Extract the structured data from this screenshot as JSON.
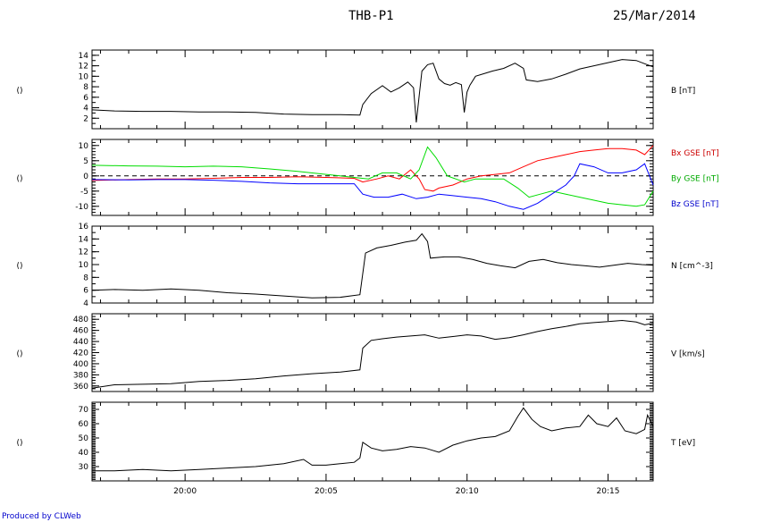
{
  "header": {
    "title": "THB-P1",
    "date": "25/Mar/2014"
  },
  "footer": {
    "credit": "Produced by CLWeb"
  },
  "chart_data": {
    "type": "line",
    "x_tick_labels": [
      "20:00",
      "20:05",
      "20:10",
      "20:15"
    ],
    "x_tick_minutes": [
      0,
      5,
      10,
      15
    ],
    "xlim_minutes": [
      -3.3,
      16.6
    ],
    "panels": [
      {
        "id": "B",
        "left_label": "()",
        "ylim": [
          0,
          15
        ],
        "yticks": [
          2,
          4,
          6,
          8,
          10,
          12,
          14
        ],
        "zero_line": false,
        "labels": [
          {
            "text": "B [nT]",
            "color": "#000000"
          }
        ],
        "series": [
          {
            "color": "#000000",
            "x": [
              -3.3,
              -2.5,
              -1.5,
              -0.5,
              0.5,
              1.5,
              2.5,
              3.5,
              4.5,
              5.5,
              6.2,
              6.3,
              6.6,
              7.0,
              7.3,
              7.6,
              7.9,
              8.1,
              8.2,
              8.3,
              8.4,
              8.6,
              8.8,
              9.0,
              9.2,
              9.4,
              9.6,
              9.8,
              9.9,
              10.0,
              10.1,
              10.3,
              10.6,
              10.9,
              11.3,
              11.7,
              12.0,
              12.1,
              12.5,
              13.0,
              13.5,
              14.0,
              14.5,
              15.0,
              15.5,
              16.0,
              16.3,
              16.6
            ],
            "y": [
              3.6,
              3.4,
              3.3,
              3.3,
              3.2,
              3.2,
              3.1,
              2.8,
              2.7,
              2.7,
              2.6,
              4.6,
              6.7,
              8.2,
              7.0,
              7.8,
              8.9,
              7.8,
              1.2,
              6.2,
              11.0,
              12.2,
              12.5,
              9.5,
              8.6,
              8.3,
              8.8,
              8.4,
              3.1,
              7.0,
              8.3,
              10.0,
              10.5,
              11.0,
              11.5,
              12.5,
              11.5,
              9.3,
              9.0,
              9.5,
              10.4,
              11.4,
              12.0,
              12.6,
              13.2,
              13.0,
              12.4,
              11.8
            ]
          }
        ]
      },
      {
        "id": "Bxyz",
        "left_label": "()",
        "ylim": [
          -13,
          12
        ],
        "yticks": [
          -10,
          -5,
          0,
          5,
          10
        ],
        "zero_line": true,
        "labels": [
          {
            "text": "Bx GSE [nT]",
            "color": "#cc0000"
          },
          {
            "text": "By GSE [nT]",
            "color": "#00aa00"
          },
          {
            "text": "Bz GSE [nT]",
            "color": "#0000cc"
          }
        ],
        "series": [
          {
            "name": "Bx GSE [nT]",
            "color": "#ff0000",
            "x": [
              -3.3,
              -2,
              -1,
              0,
              1,
              2,
              3,
              4,
              5,
              6,
              6.3,
              6.8,
              7.2,
              7.6,
              8.0,
              8.3,
              8.5,
              8.8,
              9.0,
              9.5,
              10,
              10.5,
              11,
              11.5,
              12.0,
              12.5,
              13,
              13.5,
              14,
              14.5,
              15,
              15.5,
              16,
              16.3,
              16.6
            ],
            "y": [
              -1.5,
              -1.2,
              -1.0,
              -1.0,
              -0.8,
              -0.5,
              -0.5,
              -0.3,
              -0.5,
              -0.8,
              -2,
              -1,
              0,
              -1,
              2,
              -1,
              -4.5,
              -5,
              -4,
              -3,
              -1,
              0,
              0.5,
              1,
              3,
              5,
              6,
              7,
              8,
              8.5,
              9,
              9,
              8.5,
              7,
              10
            ]
          },
          {
            "name": "By GSE [nT]",
            "color": "#00dd00",
            "x": [
              -3.3,
              -2,
              -1,
              0,
              1,
              2,
              3,
              4,
              5,
              5.5,
              6,
              6.5,
              7,
              7.5,
              8,
              8.3,
              8.6,
              8.9,
              9.3,
              9.6,
              9.9,
              10.3,
              10.8,
              11.3,
              11.8,
              12.2,
              12.6,
              13,
              13.5,
              14,
              14.5,
              15,
              15.5,
              16,
              16.3,
              16.6
            ],
            "y": [
              3.5,
              3.3,
              3.2,
              3.0,
              3.2,
              3.0,
              2.3,
              1.5,
              0.5,
              0.0,
              -0.5,
              -1,
              1,
              1,
              -1,
              2,
              9.5,
              6,
              0,
              -1,
              -2,
              -1,
              -1,
              -1,
              -4,
              -7,
              -6,
              -5,
              -6,
              -7,
              -8,
              -9,
              -9.5,
              -10,
              -9.5,
              -5
            ]
          },
          {
            "name": "Bz GSE [nT]",
            "color": "#0000ff",
            "x": [
              -3.3,
              -2,
              -1,
              0,
              1,
              2,
              3,
              4,
              5,
              6,
              6.3,
              6.7,
              7.2,
              7.7,
              8.2,
              8.6,
              9,
              9.5,
              10,
              10.5,
              11,
              11.5,
              12,
              12.5,
              13,
              13.5,
              13.8,
              14,
              14.5,
              15,
              15.5,
              16,
              16.3,
              16.6
            ],
            "y": [
              -1.2,
              -1.3,
              -1.2,
              -1.2,
              -1.4,
              -1.8,
              -2.3,
              -2.6,
              -2.6,
              -2.6,
              -6,
              -7,
              -7,
              -6,
              -7.5,
              -7,
              -6,
              -6.5,
              -7,
              -7.5,
              -8.5,
              -10,
              -11,
              -9,
              -6,
              -3,
              0,
              4,
              3,
              1,
              1,
              2,
              4,
              -3
            ]
          }
        ]
      },
      {
        "id": "N",
        "left_label": "()",
        "ylim": [
          4,
          16
        ],
        "yticks": [
          4,
          6,
          8,
          10,
          12,
          14,
          16
        ],
        "zero_line": false,
        "labels": [
          {
            "text": "N [cm^-3]",
            "color": "#000000"
          }
        ],
        "series": [
          {
            "color": "#000000",
            "x": [
              -3.3,
              -2.5,
              -1.5,
              -0.5,
              0.5,
              1.5,
              2.5,
              3.5,
              4.5,
              5.5,
              6.2,
              6.4,
              6.8,
              7.3,
              7.8,
              8.2,
              8.4,
              8.6,
              8.7,
              9.2,
              9.7,
              10.2,
              10.7,
              11.2,
              11.7,
              12.2,
              12.7,
              13.2,
              13.7,
              14.2,
              14.7,
              15.2,
              15.7,
              16.2,
              16.6
            ],
            "y": [
              6.0,
              6.1,
              6.0,
              6.2,
              6.0,
              5.6,
              5.4,
              5.1,
              4.8,
              4.9,
              5.3,
              11.8,
              12.6,
              13.0,
              13.5,
              13.8,
              14.8,
              13.6,
              11.0,
              11.2,
              11.2,
              10.8,
              10.2,
              9.8,
              9.5,
              10.5,
              10.8,
              10.3,
              10.0,
              9.8,
              9.6,
              9.9,
              10.2,
              10.0,
              9.9
            ]
          }
        ]
      },
      {
        "id": "V",
        "left_label": "()",
        "ylim": [
          350,
          490
        ],
        "yticks": [
          360,
          380,
          400,
          420,
          440,
          460,
          480
        ],
        "zero_line": false,
        "labels": [
          {
            "text": "V [km/s]",
            "color": "#000000"
          }
        ],
        "series": [
          {
            "color": "#000000",
            "x": [
              -3.3,
              -2.5,
              -1.5,
              -0.5,
              0.5,
              1.5,
              2.5,
              3.5,
              4.5,
              5.5,
              6.2,
              6.3,
              6.6,
              7.0,
              7.5,
              8.0,
              8.5,
              9.0,
              9.5,
              10.0,
              10.5,
              11.0,
              11.5,
              12.0,
              12.5,
              13.0,
              13.5,
              14.0,
              14.5,
              15.0,
              15.5,
              16.0,
              16.3,
              16.6
            ],
            "y": [
              356,
              362,
              363,
              364,
              368,
              370,
              373,
              378,
              382,
              385,
              389,
              428,
              442,
              445,
              448,
              450,
              452,
              446,
              449,
              452,
              450,
              444,
              447,
              452,
              458,
              463,
              467,
              472,
              474,
              476,
              478,
              475,
              470,
              473
            ]
          }
        ]
      },
      {
        "id": "T",
        "left_label": "()",
        "ylim": [
          20,
          75
        ],
        "yticks": [
          30,
          40,
          50,
          60,
          70
        ],
        "zero_line": false,
        "labels": [
          {
            "text": "T [eV]",
            "color": "#000000"
          }
        ],
        "series": [
          {
            "color": "#000000",
            "x": [
              -3.3,
              -2.5,
              -1.5,
              -0.5,
              0.5,
              1.5,
              2.5,
              3.5,
              4.2,
              4.5,
              5.0,
              5.5,
              6.0,
              6.2,
              6.3,
              6.6,
              7.0,
              7.5,
              8.0,
              8.5,
              9.0,
              9.5,
              10.0,
              10.5,
              11.0,
              11.5,
              11.8,
              12.0,
              12.3,
              12.6,
              13.0,
              13.5,
              14.0,
              14.3,
              14.6,
              15.0,
              15.3,
              15.6,
              16.0,
              16.3,
              16.4,
              16.6
            ],
            "y": [
              27,
              27,
              28,
              27,
              28,
              29,
              30,
              32,
              35,
              31,
              31,
              32,
              33,
              36,
              47,
              43,
              41,
              42,
              44,
              43,
              40,
              45,
              48,
              50,
              51,
              55,
              65,
              71,
              63,
              58,
              55,
              57,
              58,
              66,
              60,
              58,
              64,
              55,
              53,
              56,
              66,
              58
            ]
          }
        ]
      }
    ]
  }
}
